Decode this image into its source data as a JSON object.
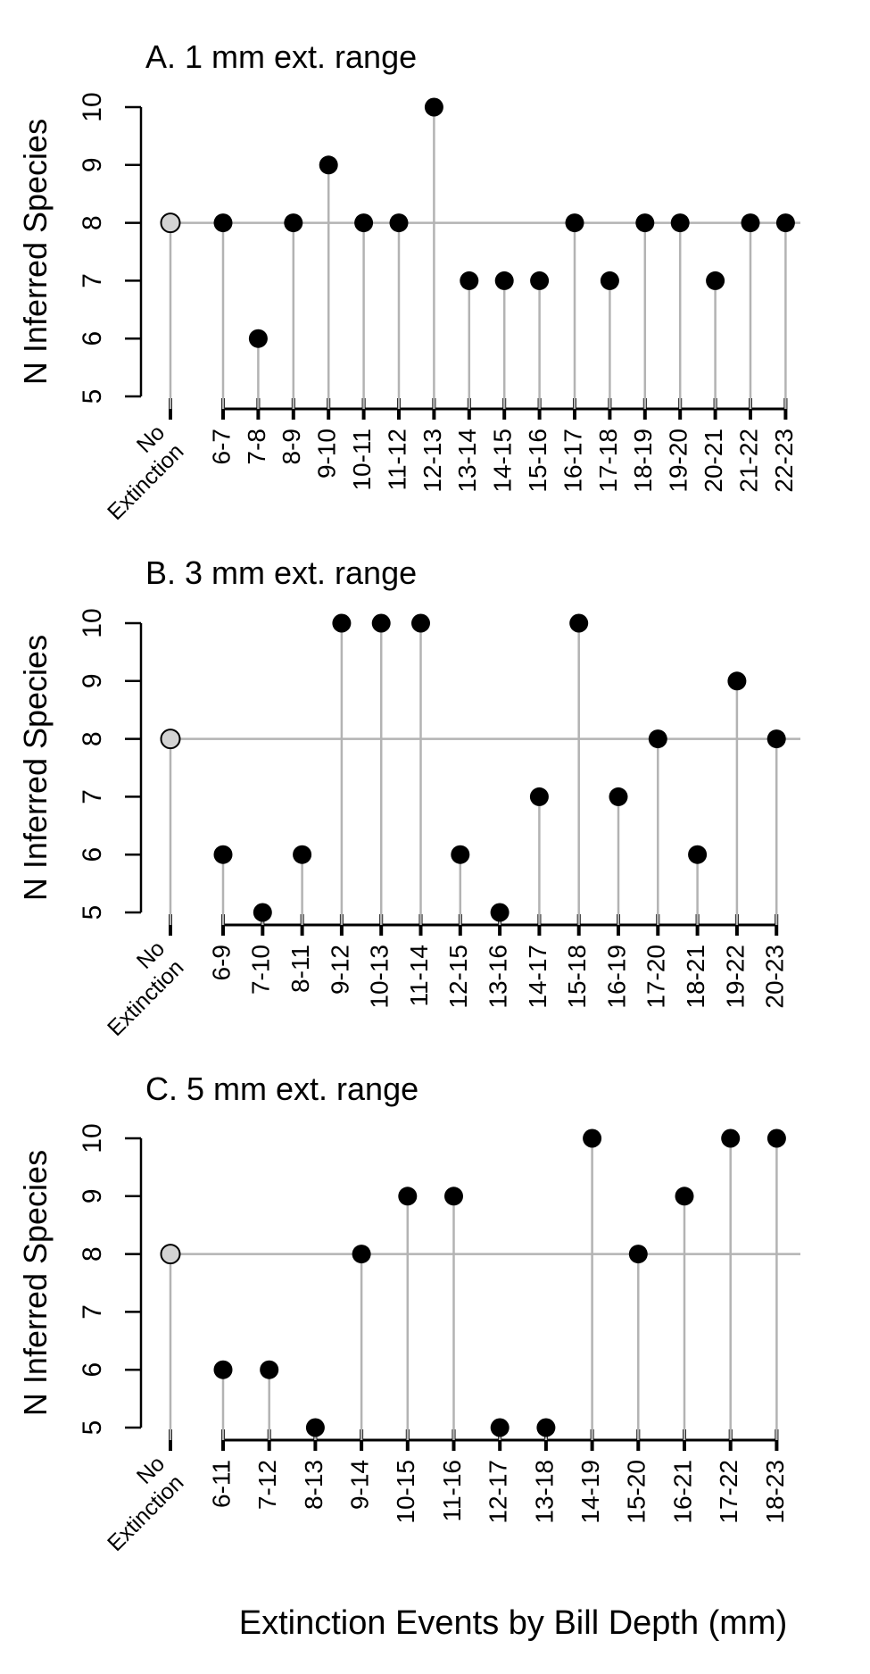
{
  "chart_data": [
    {
      "type": "scatter",
      "title": "A.   1 mm ext. range",
      "ylabel": "N Inferred Species",
      "ylim": [
        5,
        10
      ],
      "yticks": [
        5,
        6,
        7,
        8,
        9,
        10
      ],
      "reference_category": "No Extinction",
      "reference_value": 8,
      "categories": [
        "No Extinction",
        "6-7",
        "7-8",
        "8-9",
        "9-10",
        "10-11",
        "11-12",
        "12-13",
        "13-14",
        "14-15",
        "15-16",
        "16-17",
        "17-18",
        "18-19",
        "19-20",
        "20-21",
        "21-22",
        "22-23"
      ],
      "values": [
        8,
        8,
        6,
        8,
        9,
        8,
        8,
        10,
        7,
        7,
        7,
        8,
        7,
        8,
        8,
        7,
        8,
        8
      ]
    },
    {
      "type": "scatter",
      "title": "B.  3 mm ext. range",
      "ylabel": "N Inferred Species",
      "ylim": [
        5,
        10
      ],
      "yticks": [
        5,
        6,
        7,
        8,
        9,
        10
      ],
      "reference_category": "No Extinction",
      "reference_value": 8,
      "categories": [
        "No Extinction",
        "6-9",
        "7-10",
        "8-11",
        "9-12",
        "10-13",
        "11-14",
        "12-15",
        "13-16",
        "14-17",
        "15-18",
        "16-19",
        "17-20",
        "18-21",
        "19-22",
        "20-23"
      ],
      "values": [
        8,
        6,
        5,
        6,
        10,
        10,
        10,
        6,
        5,
        7,
        10,
        7,
        8,
        6,
        9,
        8
      ]
    },
    {
      "type": "scatter",
      "title": "C.  5 mm ext. range",
      "ylabel": "N Inferred Species",
      "ylim": [
        5,
        10
      ],
      "yticks": [
        5,
        6,
        7,
        8,
        9,
        10
      ],
      "reference_category": "No Extinction",
      "reference_value": 8,
      "categories": [
        "No Extinction",
        "6-11",
        "7-12",
        "8-13",
        "9-14",
        "10-15",
        "11-16",
        "12-17",
        "13-18",
        "14-19",
        "15-20",
        "16-21",
        "17-22",
        "18-23"
      ],
      "values": [
        8,
        6,
        6,
        5,
        8,
        9,
        9,
        5,
        5,
        10,
        8,
        9,
        10,
        10
      ]
    }
  ],
  "xlabel": "Extinction Events by Bill Depth (mm)",
  "colors": {
    "stem": "#b3b3b3",
    "reference_line": "#b3b3b3",
    "point": "#000000",
    "reference_point_fill": "#d3d3d3",
    "axis": "#000000"
  }
}
